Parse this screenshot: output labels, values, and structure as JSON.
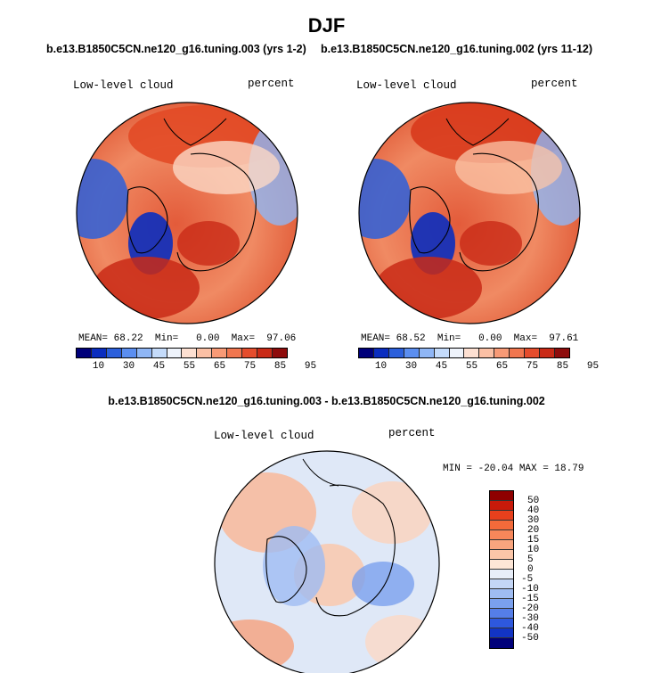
{
  "title": "DJF",
  "chart_data": [
    {
      "type": "heatmap",
      "title": "b.e13.B1850C5CN.ne120_g16.tuning.003 (yrs 1-2)",
      "variable": "Low-level cloud",
      "units": "percent",
      "projection": "north polar stereographic",
      "stats": {
        "mean_label": "MEAN=",
        "mean": "68.22",
        "min_label": "Min=",
        "min": "0.00",
        "max_label": "Max=",
        "max": "97.06"
      },
      "colorbar_ticks": [
        "10",
        "30",
        "45",
        "55",
        "65",
        "75",
        "85",
        "95"
      ],
      "colorbar_colors": [
        "#00007a",
        "#0a2dbf",
        "#2b5fdb",
        "#5b8ef0",
        "#8fb6f5",
        "#c4dbfa",
        "#eef3fb",
        "#fde0d2",
        "#fbc0a5",
        "#f89a76",
        "#f1764f",
        "#e54d2d",
        "#c92a16",
        "#8e0c0c"
      ]
    },
    {
      "type": "heatmap",
      "title": "b.e13.B1850C5CN.ne120_g16.tuning.002 (yrs 11-12)",
      "variable": "Low-level cloud",
      "units": "percent",
      "projection": "north polar stereographic",
      "stats": {
        "mean_label": "MEAN=",
        "mean": "68.52",
        "min_label": "Min=",
        "min": "0.00",
        "max_label": "Max=",
        "max": "97.61"
      },
      "colorbar_ticks": [
        "10",
        "30",
        "45",
        "55",
        "65",
        "75",
        "85",
        "95"
      ],
      "colorbar_colors": [
        "#00007a",
        "#0a2dbf",
        "#2b5fdb",
        "#5b8ef0",
        "#8fb6f5",
        "#c4dbfa",
        "#eef3fb",
        "#fde0d2",
        "#fbc0a5",
        "#f89a76",
        "#f1764f",
        "#e54d2d",
        "#c92a16",
        "#8e0c0c"
      ]
    },
    {
      "type": "heatmap",
      "title": "b.e13.B1850C5CN.ne120_g16.tuning.003 - b.e13.B1850C5CN.ne120_g16.tuning.002",
      "variable": "Low-level cloud",
      "units": "percent",
      "projection": "north polar stereographic",
      "stats_text": "MIN = -20.04 MAX =  18.79",
      "min": -20.04,
      "max": 18.79,
      "colorbar_ticks": [
        "50",
        "40",
        "30",
        "20",
        "15",
        "10",
        "5",
        "0",
        "-5",
        "-10",
        "-15",
        "-20",
        "-30",
        "-40",
        "-50"
      ],
      "colorbar_colors": [
        "#8e0000",
        "#c81a0a",
        "#e8401c",
        "#f36a3a",
        "#f7875a",
        "#f9a57e",
        "#fbc6a8",
        "#fde6d6",
        "#e8eef9",
        "#c4d6f6",
        "#9fbcf2",
        "#7aa0ee",
        "#557ee8",
        "#2e58dd",
        "#1234c4",
        "#00007a"
      ]
    }
  ]
}
